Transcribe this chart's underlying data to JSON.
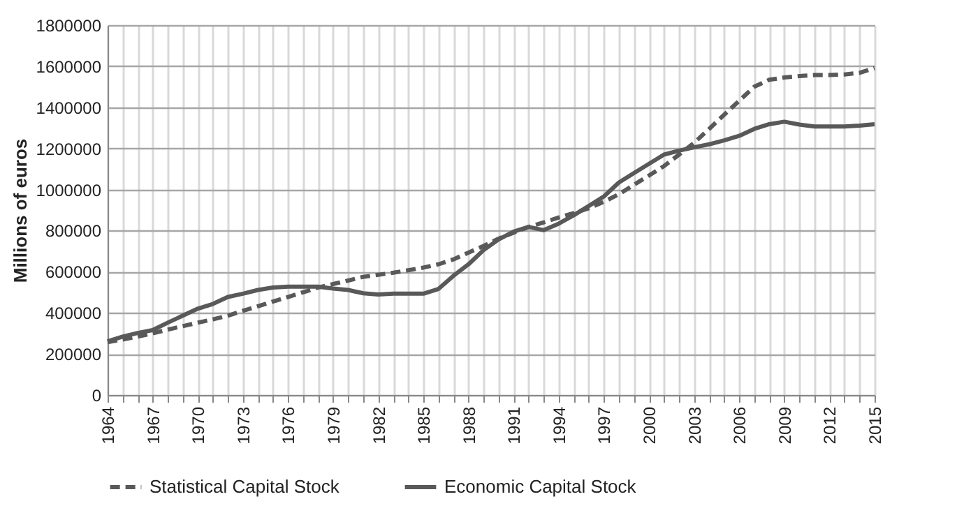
{
  "chart_data": {
    "type": "line",
    "ylabel": "Millions of euros",
    "legend": "bottom",
    "grid": true,
    "marker": "none",
    "x": [
      1964,
      1965,
      1966,
      1967,
      1968,
      1969,
      1970,
      1971,
      1972,
      1973,
      1974,
      1975,
      1976,
      1977,
      1978,
      1979,
      1980,
      1981,
      1982,
      1983,
      1984,
      1985,
      1986,
      1987,
      1988,
      1989,
      1990,
      1991,
      1992,
      1993,
      1994,
      1995,
      1996,
      1997,
      1998,
      1999,
      2000,
      2001,
      2002,
      2003,
      2004,
      2005,
      2006,
      2007,
      2008,
      2009,
      2010,
      2011,
      2012,
      2013,
      2014,
      2015
    ],
    "xlim": [
      1964,
      2015
    ],
    "xticks": [
      1964,
      {
        "value": 1965,
        "label": null
      },
      {
        "value": 1966,
        "label": null
      },
      1967,
      {
        "value": 1968,
        "label": null
      },
      {
        "value": 1969,
        "label": null
      },
      1970,
      {
        "value": 1971,
        "label": null
      },
      {
        "value": 1972,
        "label": null
      },
      1973,
      {
        "value": 1974,
        "label": null
      },
      {
        "value": 1975,
        "label": null
      },
      1976,
      {
        "value": 1977,
        "label": null
      },
      {
        "value": 1978,
        "label": null
      },
      1979,
      {
        "value": 1980,
        "label": null
      },
      {
        "value": 1981,
        "label": null
      },
      1982,
      {
        "value": 1983,
        "label": null
      },
      {
        "value": 1984,
        "label": null
      },
      1985,
      {
        "value": 1986,
        "label": null
      },
      {
        "value": 1987,
        "label": null
      },
      1988,
      {
        "value": 1989,
        "label": null
      },
      {
        "value": 1990,
        "label": null
      },
      1991,
      {
        "value": 1992,
        "label": null
      },
      {
        "value": 1993,
        "label": null
      },
      1994,
      {
        "value": 1995,
        "label": null
      },
      {
        "value": 1996,
        "label": null
      },
      1997,
      {
        "value": 1998,
        "label": null
      },
      {
        "value": 1999,
        "label": null
      },
      2000,
      {
        "value": 2001,
        "label": null
      },
      {
        "value": 2002,
        "label": null
      },
      2003,
      {
        "value": 2004,
        "label": null
      },
      {
        "value": 2005,
        "label": null
      },
      2006,
      {
        "value": 2007,
        "label": null
      },
      {
        "value": 2008,
        "label": null
      },
      2009,
      {
        "value": 2010,
        "label": null
      },
      {
        "value": 2011,
        "label": null
      },
      2012,
      {
        "value": 2013,
        "label": null
      },
      {
        "value": 2014,
        "label": null
      },
      2015
    ],
    "ylim": [
      0,
      1800000
    ],
    "yticks": [
      0,
      200000,
      400000,
      600000,
      800000,
      1000000,
      1200000,
      1400000,
      1600000,
      1800000
    ],
    "series": [
      {
        "name": "Statistical Capital Stock",
        "color": "#595959",
        "line_style": "dashed",
        "values": [
          257000,
          270000,
          284000,
          300000,
          318000,
          335000,
          352000,
          368000,
          386000,
          410000,
          432000,
          455000,
          477000,
          500000,
          523000,
          540000,
          557000,
          575000,
          585000,
          595000,
          607000,
          620000,
          636000,
          660000,
          693000,
          725000,
          761000,
          790000,
          818000,
          840000,
          864000,
          885000,
          909000,
          940000,
          977000,
          1023000,
          1068000,
          1114000,
          1170000,
          1227000,
          1295000,
          1364000,
          1432000,
          1500000,
          1534000,
          1545000,
          1552000,
          1557000,
          1557000,
          1560000,
          1568000,
          1591000
        ]
      },
      {
        "name": "Economic Capital Stock",
        "color": "#595959",
        "line_style": "solid",
        "values": [
          261000,
          284000,
          302000,
          316000,
          352000,
          386000,
          420000,
          443000,
          477000,
          493000,
          511000,
          523000,
          527000,
          527000,
          527000,
          518000,
          511000,
          495000,
          489000,
          493000,
          493000,
          493000,
          516000,
          580000,
          636000,
          705000,
          757000,
          795000,
          818000,
          802000,
          834000,
          875000,
          920000,
          966000,
          1034000,
          1080000,
          1125000,
          1170000,
          1189000,
          1205000,
          1220000,
          1239000,
          1261000,
          1295000,
          1318000,
          1330000,
          1316000,
          1307000,
          1307000,
          1307000,
          1311000,
          1318000
        ]
      }
    ]
  }
}
